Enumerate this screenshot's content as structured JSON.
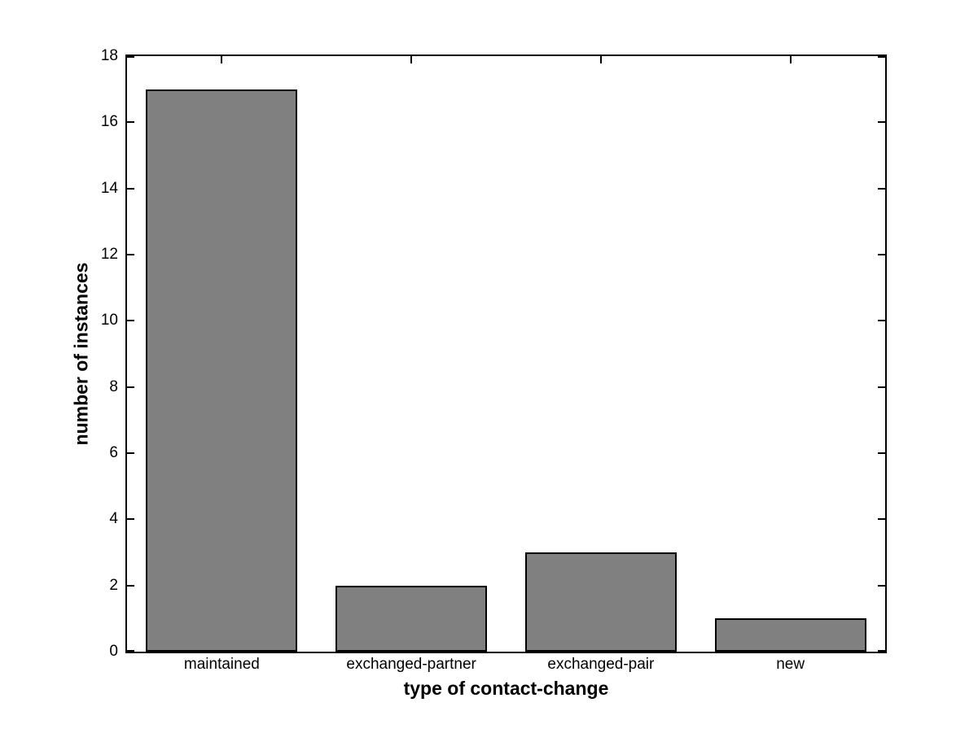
{
  "figure": {
    "background": "#ffffff"
  },
  "chart_data": {
    "type": "bar",
    "title": "",
    "categories": [
      "maintained",
      "exchanged-partner",
      "exchanged-pair",
      "new"
    ],
    "values": [
      17,
      2,
      3,
      1
    ],
    "xlabel": "type of contact-change",
    "ylabel": "number of instances",
    "ylim": [
      0,
      18
    ],
    "yticks": [
      0,
      2,
      4,
      6,
      8,
      10,
      12,
      14,
      16,
      18
    ],
    "grid": false,
    "legend": "none",
    "bar_width_fraction": 0.8,
    "bar_color": "#808080",
    "bar_edge_color": "#000000",
    "axis_color": "#000000",
    "tick_direction": "in",
    "box": true
  }
}
